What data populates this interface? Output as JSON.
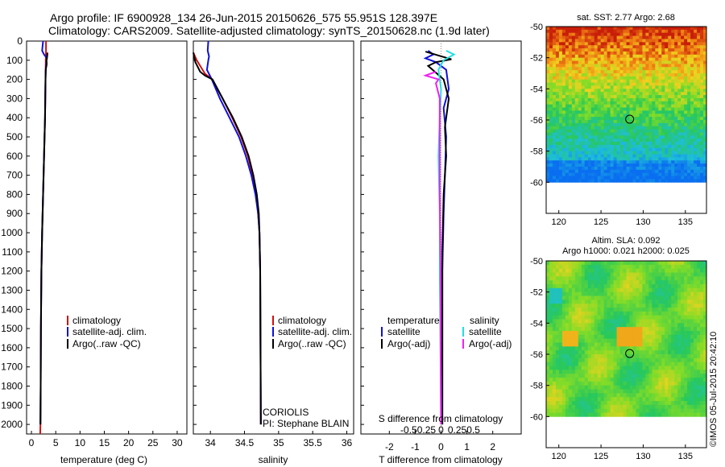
{
  "title_line1": "Argo profile: IF 6900928_134 26-Jun-2015 20150626_575 55.951S 128.397E",
  "title_line2": "Climatology: CARS2009. Satellite-adjusted climatology: synTS_20150628.nc (1.9d later)",
  "footer_rotated": "©IMOS 05-Jul-2015 20:42:10",
  "colors": {
    "climatology": "#d01010",
    "satellite": "#1010d8",
    "argo": "#000000",
    "sal_satellite": "#20e0e0",
    "sal_argo": "#f020f0"
  },
  "chart_data": [
    {
      "id": "temperature",
      "type": "line",
      "xlabel": "temperature (deg C)",
      "ylabel": "",
      "xlim": [
        -1,
        32
      ],
      "ylim": [
        2050,
        0
      ],
      "xticks": [
        0,
        5,
        10,
        15,
        20,
        25,
        30
      ],
      "yticks": [
        0,
        100,
        200,
        300,
        400,
        500,
        600,
        700,
        800,
        900,
        1000,
        1100,
        1200,
        1300,
        1400,
        1500,
        1600,
        1700,
        1800,
        1900,
        2000
      ],
      "legend": [
        "climatology",
        "satellite-adj. clim.",
        "Argo(..raw -QC)"
      ],
      "series": [
        {
          "name": "climatology",
          "color": "#d01010",
          "x": [
            3.0,
            3.0,
            2.95,
            2.9,
            2.8,
            2.6,
            2.4,
            2.2,
            2.05,
            1.95,
            1.9,
            1.85,
            1.8
          ],
          "y": [
            0,
            60,
            100,
            200,
            400,
            600,
            800,
            1000,
            1200,
            1500,
            1800,
            2000,
            2050
          ]
        },
        {
          "name": "satellite-adj. clim.",
          "color": "#1010d8",
          "x": [
            2.4,
            2.2,
            2.6,
            3.2,
            3.1,
            2.95,
            2.9,
            2.8,
            2.6,
            2.4,
            2.2,
            2.05,
            1.95,
            1.9,
            1.85
          ],
          "y": [
            0,
            50,
            70,
            90,
            100,
            150,
            200,
            400,
            600,
            800,
            1000,
            1200,
            1500,
            1800,
            2000
          ]
        },
        {
          "name": "Argo(..raw -QC)",
          "color": "#000000",
          "x": [
            3.3,
            3.25,
            3.1,
            3.15,
            2.95,
            2.9,
            2.8,
            2.6,
            2.4,
            2.2,
            2.05,
            1.95,
            1.9,
            1.85
          ],
          "y": [
            60,
            80,
            100,
            120,
            150,
            200,
            400,
            600,
            800,
            1000,
            1200,
            1500,
            1800,
            2000
          ]
        }
      ]
    },
    {
      "id": "salinity",
      "type": "line",
      "xlabel": "salinity",
      "ylabel": "",
      "xlim": [
        33.75,
        36.1
      ],
      "ylim": [
        2050,
        0
      ],
      "xticks": [
        34,
        34.5,
        35,
        35.5,
        36
      ],
      "xtick_labels": [
        "34",
        "34.5",
        "35",
        "35.5",
        "36"
      ],
      "legend": [
        "climatology",
        "satellite-adj. clim.",
        "Argo(..raw -QC)"
      ],
      "annotations": [
        "CORIOLIS",
        "PI: Stephane BLAIN"
      ],
      "series": [
        {
          "name": "climatology",
          "color": "#d01010",
          "x": [
            33.75,
            33.8,
            33.92,
            34.03,
            34.18,
            34.32,
            34.45,
            34.55,
            34.62,
            34.67,
            34.7,
            34.72,
            34.73,
            34.74
          ],
          "y": [
            60,
            100,
            170,
            200,
            300,
            400,
            500,
            600,
            700,
            800,
            900,
            1000,
            1200,
            2000
          ]
        },
        {
          "name": "satellite-adj. clim.",
          "color": "#1010d8",
          "x": [
            33.97,
            33.96,
            33.98,
            33.97,
            33.95,
            34.02,
            34.14,
            34.28,
            34.42,
            34.52,
            34.6,
            34.66,
            34.7,
            34.72,
            34.73,
            34.74
          ],
          "y": [
            0,
            50,
            80,
            100,
            150,
            200,
            300,
            400,
            500,
            600,
            700,
            800,
            900,
            1000,
            1200,
            2000
          ]
        },
        {
          "name": "Argo(..raw -QC)",
          "color": "#000000",
          "x": [
            33.75,
            33.78,
            33.85,
            33.92,
            34.03,
            34.18,
            34.33,
            34.46,
            34.56,
            34.63,
            34.68,
            34.71,
            34.72,
            34.73,
            34.74
          ],
          "y": [
            60,
            110,
            160,
            180,
            200,
            300,
            400,
            500,
            600,
            700,
            800,
            900,
            1000,
            1200,
            2000
          ]
        }
      ]
    },
    {
      "id": "difference",
      "type": "line",
      "xlabel": "T difference from climatology",
      "top_label": "S difference from climatology",
      "ylabel": "",
      "xlim": [
        -3.1,
        3.1
      ],
      "ylim": [
        2050,
        0
      ],
      "xticks": [
        -2,
        -1,
        0,
        1,
        2
      ],
      "sal_ticks": [
        "-0.5",
        "-0.25",
        "0",
        "0.25",
        "0.5"
      ],
      "legend": [
        "temperature",
        "satellite",
        "Argo(-adj)",
        "salinity",
        "satellite",
        "Argo(-adj)"
      ],
      "series": [
        {
          "name": "temperature satellite",
          "color": "#1010d8",
          "x": [
            -0.5,
            -0.3,
            -0.6,
            -0.2,
            0.2,
            0.3,
            0.1,
            0.2,
            0.15,
            0.1,
            0.05,
            0.05,
            0.05
          ],
          "y": [
            50,
            70,
            90,
            110,
            150,
            250,
            350,
            500,
            700,
            900,
            1200,
            1600,
            2000
          ]
        },
        {
          "name": "temperature Argo(-adj)",
          "color": "#000000",
          "x": [
            -0.6,
            -0.1,
            0.4,
            -0.2,
            -0.5,
            0.1,
            0.3,
            0.15,
            0.2,
            0.1,
            0.05,
            0.05,
            0.05
          ],
          "y": [
            55,
            75,
            95,
            110,
            130,
            200,
            300,
            450,
            600,
            800,
            1100,
            1500,
            2000
          ]
        },
        {
          "name": "salinity satellite",
          "color": "#20e0e0",
          "x": [
            0.2,
            0.5,
            0.1,
            -0.1,
            0.0,
            -0.05,
            -0.1,
            -0.05,
            -0.05,
            -0.02,
            0.0
          ],
          "y": [
            50,
            70,
            100,
            150,
            250,
            400,
            600,
            900,
            1200,
            1600,
            2000
          ]
        },
        {
          "name": "salinity Argo(-adj)",
          "color": "#f020f0",
          "x": [
            -0.2,
            -0.6,
            -0.1,
            -0.2,
            -0.05,
            -0.05,
            -0.05,
            -0.02,
            -0.02,
            0.0
          ],
          "y": [
            160,
            180,
            200,
            220,
            300,
            500,
            800,
            1200,
            1600,
            2000
          ]
        }
      ]
    },
    {
      "id": "sst_map",
      "type": "heatmap",
      "title": "sat. SST: 2.77 Argo: 2.68",
      "xticks": [
        "120",
        "125",
        "130",
        "135"
      ],
      "yticks": [
        "-50",
        "-52",
        "-54",
        "-56",
        "-58",
        "-60"
      ],
      "xlim": [
        118.5,
        137.5
      ],
      "ylim": [
        -62,
        -50
      ],
      "argo_position": {
        "lon": 128.397,
        "lat": -55.951
      }
    },
    {
      "id": "sla_map",
      "type": "heatmap",
      "title_line1": "Altim. SLA: 0.092",
      "title_line2": "Argo h1000: 0.021 h2000: 0.025",
      "xticks": [
        "120",
        "125",
        "130",
        "135"
      ],
      "yticks": [
        "-50",
        "-52",
        "-54",
        "-56",
        "-58",
        "-60"
      ],
      "xlim": [
        118.5,
        137.5
      ],
      "ylim": [
        -62,
        -50
      ],
      "argo_position": {
        "lon": 128.397,
        "lat": -55.951
      }
    }
  ]
}
